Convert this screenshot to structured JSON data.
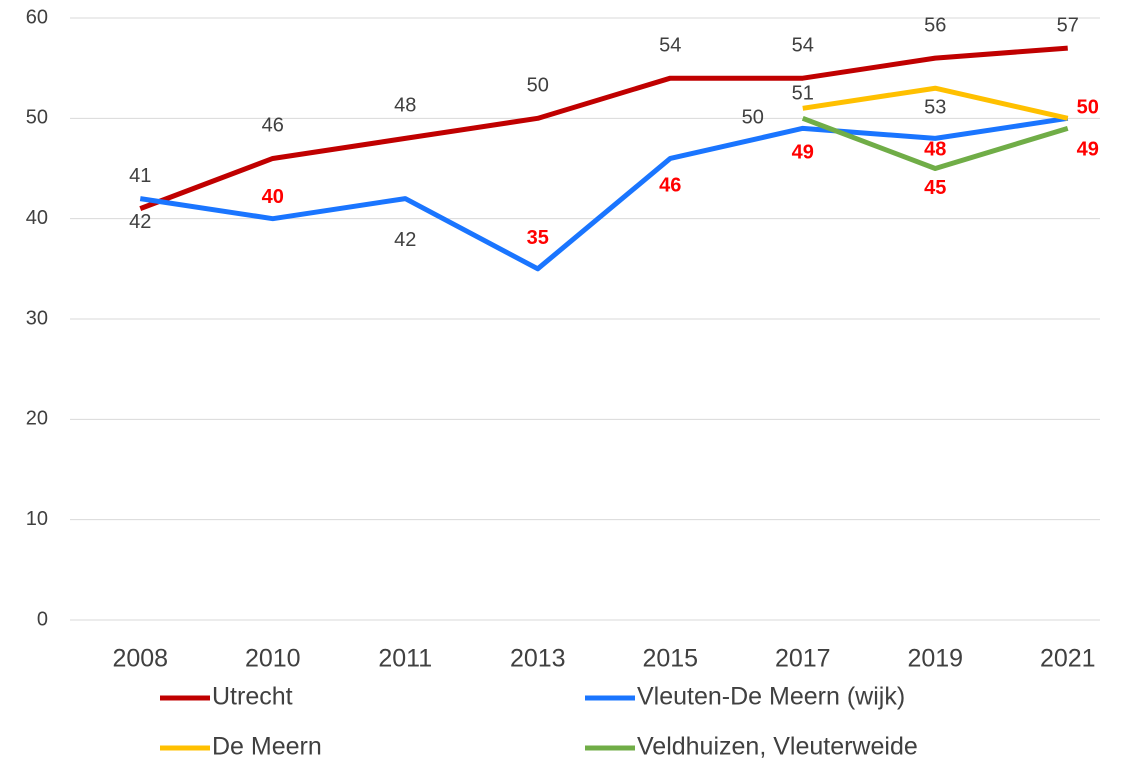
{
  "chart_data": {
    "type": "line",
    "categories": [
      "2008",
      "2010",
      "2011",
      "2013",
      "2015",
      "2017",
      "2019",
      "2021"
    ],
    "series": [
      {
        "name": "Utrecht",
        "color": "#c00000",
        "values": [
          41,
          46,
          48,
          50,
          54,
          54,
          56,
          57
        ],
        "label_colors": [
          "#404040",
          "#404040",
          "#404040",
          "#404040",
          "#404040",
          "#404040",
          "#404040",
          "#404040"
        ]
      },
      {
        "name": "Vleuten-De Meern (wijk)",
        "color": "#1a75ff",
        "values": [
          42,
          40,
          42,
          35,
          46,
          49,
          48,
          50
        ],
        "label_colors": [
          "#404040",
          "#ff0000",
          "#404040",
          "#ff0000",
          "#ff0000",
          "#ff0000",
          "#ff0000",
          null
        ]
      },
      {
        "name": "De Meern",
        "color": "#ffc000",
        "values": [
          null,
          null,
          null,
          null,
          null,
          51,
          53,
          50
        ],
        "label_colors": [
          null,
          null,
          null,
          null,
          null,
          "#404040",
          "#404040",
          "#ff0000"
        ]
      },
      {
        "name": "Veldhuizen, Vleuterweide",
        "color": "#70ad47",
        "values": [
          null,
          null,
          null,
          null,
          null,
          50,
          45,
          49
        ],
        "label_colors": [
          null,
          null,
          null,
          null,
          null,
          "#404040",
          "#ff0000",
          "#ff0000"
        ]
      }
    ],
    "ylim": [
      0,
      60
    ],
    "yticks": [
      0,
      10,
      20,
      30,
      40,
      50,
      60
    ],
    "grid": true,
    "legend": "bottom"
  }
}
